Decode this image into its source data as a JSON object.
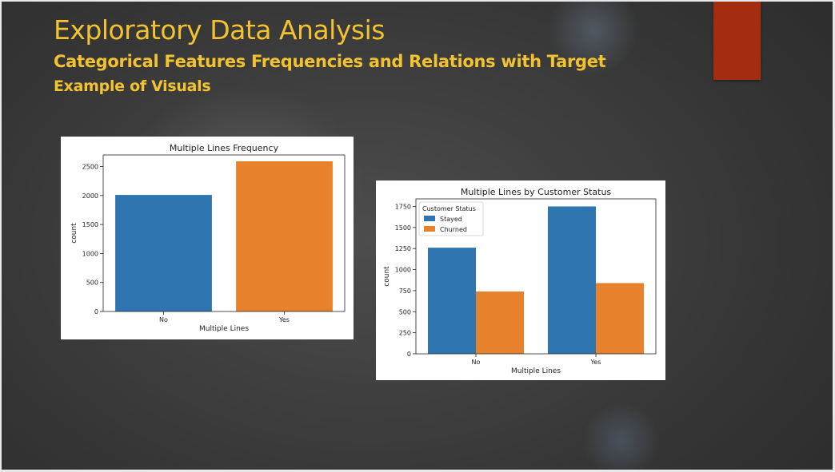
{
  "slide": {
    "title": "Exploratory Data Analysis",
    "subtitle": "Categorical Features Frequencies and Relations with Target",
    "subtitle2": "Example of Visuals",
    "colors": {
      "title": "#f2c230",
      "accent_rect": "#a42d10",
      "series_blue": "#2f76b0",
      "series_orange": "#e8812b"
    }
  },
  "chart_data": [
    {
      "type": "bar",
      "title": "Multiple Lines Frequency",
      "xlabel": "Multiple Lines",
      "ylabel": "count",
      "categories": [
        "No",
        "Yes"
      ],
      "values": [
        2010,
        2590
      ],
      "ylim": [
        0,
        2700
      ],
      "yticks": [
        0,
        500,
        1000,
        1500,
        2000,
        2500
      ],
      "colors": [
        "#2f76b0",
        "#e8812b"
      ],
      "grid": false
    },
    {
      "type": "bar",
      "title": "Multiple Lines by Customer Status",
      "xlabel": "Multiple Lines",
      "ylabel": "count",
      "categories": [
        "No",
        "Yes"
      ],
      "series": [
        {
          "name": "Stayed",
          "values": [
            1260,
            1750
          ],
          "color": "#2f76b0"
        },
        {
          "name": "Churned",
          "values": [
            740,
            840
          ],
          "color": "#e8812b"
        }
      ],
      "legend_title": "Customer Status",
      "legend_position": "top-left",
      "ylim": [
        0,
        1840
      ],
      "yticks": [
        0,
        250,
        500,
        750,
        1000,
        1250,
        1500,
        1750
      ],
      "grid": false
    }
  ]
}
